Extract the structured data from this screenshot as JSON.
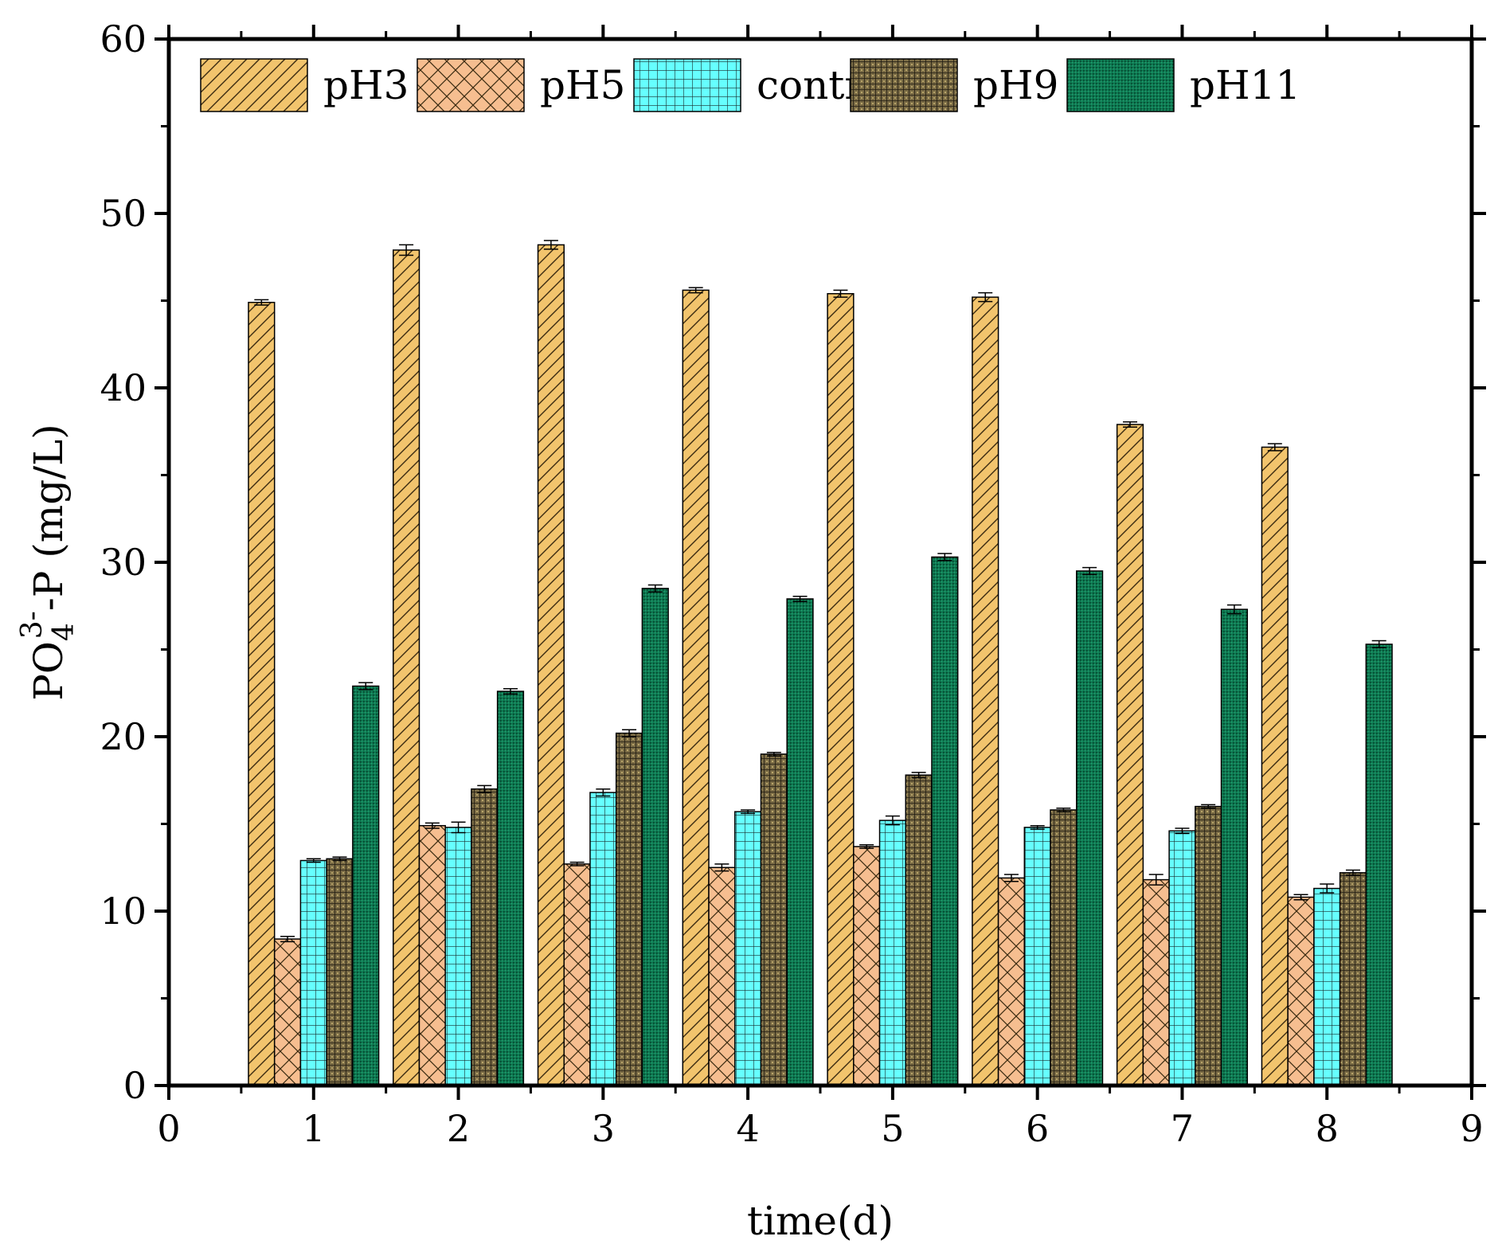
{
  "chart_data": {
    "type": "bar",
    "title": "",
    "xlabel": "time(d)",
    "ylabel": {
      "base": "PO",
      "sub": "4",
      "sup": "3-",
      "rest": "-P (mg/L)"
    },
    "xlim": [
      0,
      9
    ],
    "ylim": [
      0,
      60
    ],
    "x_ticks": [
      0,
      1,
      2,
      3,
      4,
      5,
      6,
      7,
      8,
      9
    ],
    "y_ticks": [
      0,
      10,
      20,
      30,
      40,
      50,
      60
    ],
    "legend_position": "top",
    "x": [
      1,
      2,
      3,
      4,
      5,
      6,
      7,
      8
    ],
    "series": [
      {
        "name": "pH3",
        "values": [
          44.9,
          47.9,
          48.2,
          45.6,
          45.4,
          45.2,
          37.9,
          36.6
        ],
        "errors": [
          0.15,
          0.3,
          0.25,
          0.15,
          0.2,
          0.25,
          0.15,
          0.2
        ],
        "color": "#F2C46D",
        "pattern": "hatch-diag"
      },
      {
        "name": "pH5",
        "values": [
          8.4,
          14.9,
          12.7,
          12.5,
          13.7,
          11.9,
          11.8,
          10.8
        ],
        "errors": [
          0.15,
          0.15,
          0.1,
          0.2,
          0.1,
          0.2,
          0.3,
          0.15
        ],
        "color": "#F6BE90",
        "pattern": "crosshatch"
      },
      {
        "name": "control",
        "values": [
          12.9,
          14.8,
          16.8,
          15.7,
          15.2,
          14.8,
          14.6,
          11.3
        ],
        "errors": [
          0.1,
          0.3,
          0.2,
          0.1,
          0.25,
          0.1,
          0.15,
          0.25
        ],
        "color": "#66FFFF",
        "pattern": "grid"
      },
      {
        "name": "pH9",
        "values": [
          13.0,
          17.0,
          20.2,
          19.0,
          17.8,
          15.8,
          16.0,
          12.2
        ],
        "errors": [
          0.1,
          0.2,
          0.2,
          0.1,
          0.15,
          0.1,
          0.1,
          0.15
        ],
        "color": "#4A3F28",
        "pattern": "dots-grid"
      },
      {
        "name": "pH11",
        "values": [
          22.9,
          22.6,
          28.5,
          27.9,
          30.3,
          29.5,
          27.3,
          25.3
        ],
        "errors": [
          0.2,
          0.15,
          0.2,
          0.15,
          0.2,
          0.2,
          0.25,
          0.2
        ],
        "color": "#0E6E4B",
        "pattern": "fine-dots"
      }
    ]
  }
}
